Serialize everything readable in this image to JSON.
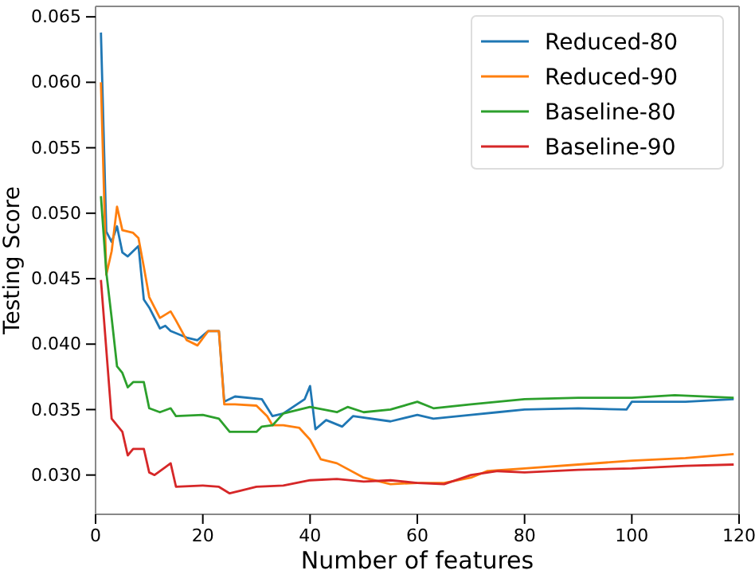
{
  "chart_data": {
    "type": "line",
    "xlabel": "Number of features",
    "ylabel": "Testing Score",
    "xlim": [
      0,
      120
    ],
    "xticks": [
      0,
      20,
      40,
      60,
      80,
      100,
      120
    ],
    "ylim": [
      0.027,
      0.0658
    ],
    "yticks": [
      {
        "value": 0.03,
        "label": "0.030"
      },
      {
        "value": 0.035,
        "label": "0.035"
      },
      {
        "value": 0.04,
        "label": "0.040"
      },
      {
        "value": 0.045,
        "label": "0.045"
      },
      {
        "value": 0.05,
        "label": "0.050"
      },
      {
        "value": 0.055,
        "label": "0.055"
      },
      {
        "value": 0.06,
        "label": "0.060"
      },
      {
        "value": 0.065,
        "label": "0.065"
      }
    ],
    "legend": "top right",
    "grid": false,
    "marker": "none",
    "line_style": "solid",
    "series": [
      {
        "name": "Reduced-80",
        "color": "#1f77b4",
        "x": [
          1,
          2,
          3,
          4,
          5,
          6,
          8,
          9,
          10,
          12,
          13,
          14,
          17,
          19,
          21,
          23,
          24,
          26,
          31,
          33,
          35,
          39,
          40,
          41,
          43,
          46,
          48,
          55,
          60,
          63,
          70,
          75,
          80,
          90,
          99,
          100,
          110,
          119
        ],
        "values": [
          0.0638,
          0.0486,
          0.0478,
          0.049,
          0.047,
          0.0467,
          0.0475,
          0.0434,
          0.0428,
          0.0412,
          0.0414,
          0.041,
          0.0405,
          0.0403,
          0.041,
          0.041,
          0.0356,
          0.036,
          0.0358,
          0.0345,
          0.0347,
          0.0358,
          0.0368,
          0.0335,
          0.0342,
          0.0337,
          0.0345,
          0.0341,
          0.0346,
          0.0343,
          0.0346,
          0.0348,
          0.035,
          0.0351,
          0.035,
          0.0356,
          0.0356,
          0.0358
        ]
      },
      {
        "name": "Reduced-90",
        "color": "#ff7f0e",
        "x": [
          1,
          2,
          3,
          4,
          5,
          7,
          8,
          9,
          10,
          12,
          14,
          15,
          17,
          19,
          21,
          23,
          24,
          26,
          30,
          32,
          33,
          35,
          38,
          40,
          42,
          45,
          50,
          55,
          60,
          65,
          70,
          73,
          80,
          90,
          100,
          110,
          119
        ],
        "values": [
          0.06,
          0.0453,
          0.0471,
          0.0505,
          0.0487,
          0.0485,
          0.0481,
          0.0459,
          0.0436,
          0.042,
          0.0425,
          0.0418,
          0.0403,
          0.0399,
          0.041,
          0.041,
          0.0354,
          0.0354,
          0.0353,
          0.0345,
          0.0338,
          0.0338,
          0.0336,
          0.0327,
          0.0312,
          0.0309,
          0.0298,
          0.0293,
          0.0294,
          0.0294,
          0.0298,
          0.0303,
          0.0305,
          0.0308,
          0.0311,
          0.0313,
          0.0316
        ]
      },
      {
        "name": "Baseline-80",
        "color": "#2ca02c",
        "x": [
          1,
          2,
          3,
          4,
          5,
          6,
          7,
          9,
          10,
          12,
          14,
          15,
          20,
          23,
          25,
          30,
          31,
          33,
          35,
          40,
          45,
          47,
          50,
          55,
          60,
          63,
          70,
          80,
          90,
          100,
          108,
          119
        ],
        "values": [
          0.0513,
          0.0455,
          0.042,
          0.0383,
          0.0378,
          0.0367,
          0.0371,
          0.0371,
          0.0351,
          0.0348,
          0.0351,
          0.0345,
          0.0346,
          0.0343,
          0.0333,
          0.0333,
          0.0337,
          0.0338,
          0.0347,
          0.0352,
          0.0348,
          0.0352,
          0.0348,
          0.035,
          0.0356,
          0.0351,
          0.0354,
          0.0358,
          0.0359,
          0.0359,
          0.0361,
          0.0359
        ]
      },
      {
        "name": "Baseline-90",
        "color": "#d62728",
        "x": [
          1,
          3,
          5,
          6,
          7,
          9,
          10,
          11,
          13,
          14,
          15,
          20,
          23,
          25,
          27,
          30,
          35,
          40,
          45,
          50,
          55,
          60,
          65,
          70,
          75,
          80,
          90,
          100,
          110,
          119
        ],
        "values": [
          0.0449,
          0.0343,
          0.0333,
          0.0315,
          0.032,
          0.032,
          0.0302,
          0.03,
          0.0306,
          0.0309,
          0.0291,
          0.0292,
          0.0291,
          0.0286,
          0.0288,
          0.0291,
          0.0292,
          0.0296,
          0.0297,
          0.0295,
          0.0296,
          0.0294,
          0.0293,
          0.03,
          0.0303,
          0.0302,
          0.0304,
          0.0305,
          0.0307,
          0.0308
        ]
      }
    ]
  }
}
